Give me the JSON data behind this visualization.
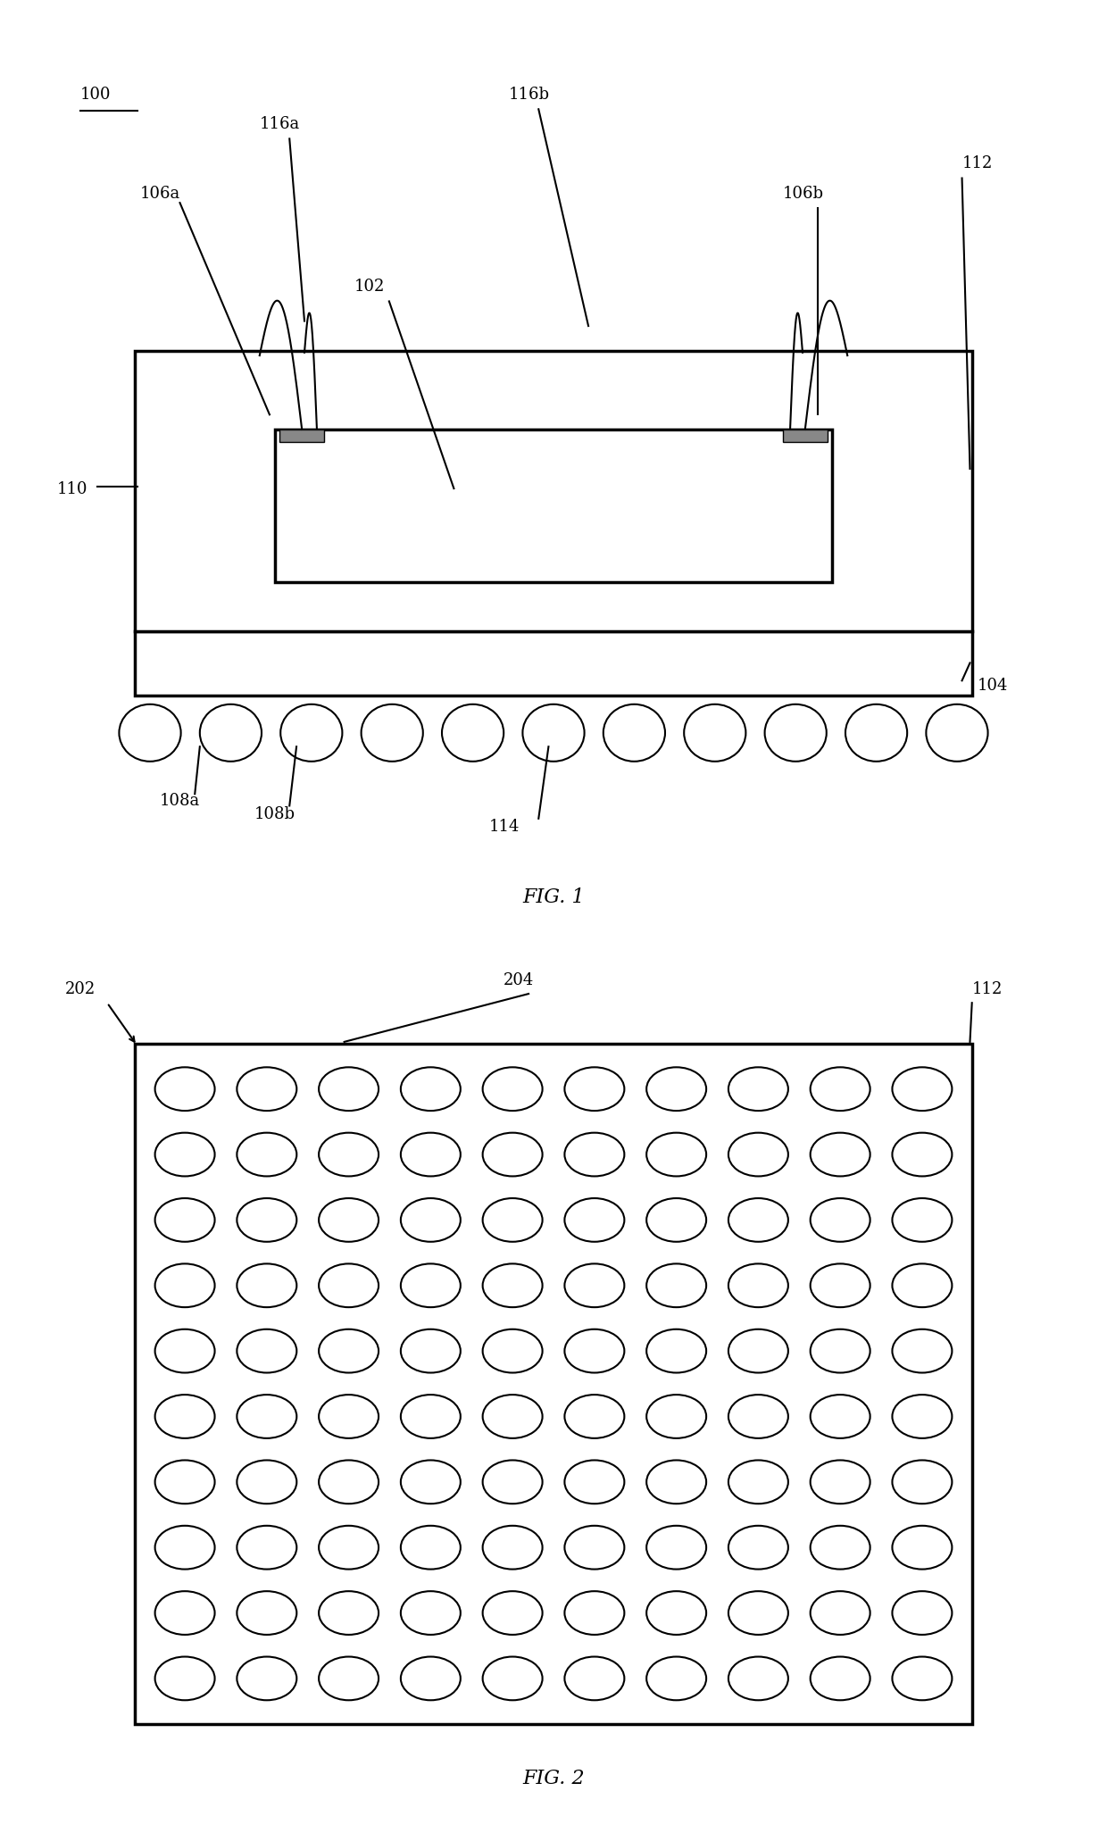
{
  "fig_width": 12.4,
  "fig_height": 20.53,
  "bg_color": "#ffffff",
  "line_color": "#000000",
  "fig1_caption": "FIG. 1",
  "fig2_caption": "FIG. 2",
  "label_100": "100",
  "label_102": "102",
  "label_104": "104",
  "label_106a": "106a",
  "label_106b": "106b",
  "label_108a": "108a",
  "label_108b": "108b",
  "label_110": "110",
  "label_112": "112",
  "label_114": "114",
  "label_116a": "116a",
  "label_116b": "116b",
  "label_202": "202",
  "label_204": "204",
  "label_112b": "112",
  "fig1_label_fontsize": 13,
  "fig2_label_fontsize": 13,
  "caption_fontsize": 16
}
